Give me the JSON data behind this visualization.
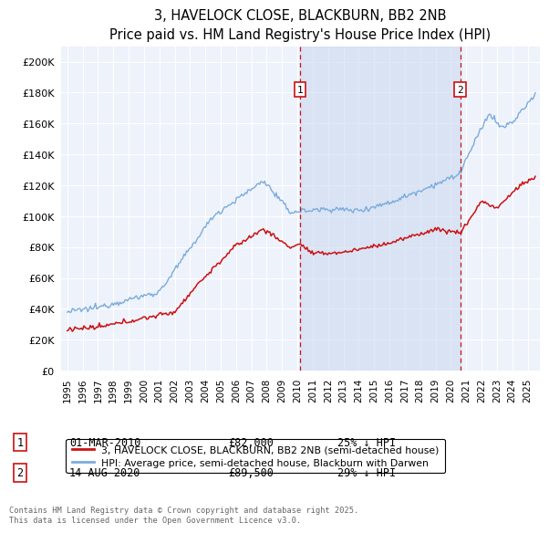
{
  "title": "3, HAVELOCK CLOSE, BLACKBURN, BB2 2NB",
  "subtitle": "Price paid vs. HM Land Registry's House Price Index (HPI)",
  "ylim": [
    0,
    210000
  ],
  "yticks": [
    0,
    20000,
    40000,
    60000,
    80000,
    100000,
    120000,
    140000,
    160000,
    180000,
    200000
  ],
  "ytick_labels": [
    "£0",
    "£20K",
    "£40K",
    "£60K",
    "£80K",
    "£100K",
    "£120K",
    "£140K",
    "£160K",
    "£180K",
    "£200K"
  ],
  "xlim_left": 1994.6,
  "xlim_right": 2025.8,
  "hpi_color": "#7aacdc",
  "price_color": "#cc1111",
  "marker1_x": 2010.17,
  "marker2_x": 2020.62,
  "marker1_text": "01-MAR-2010",
  "marker1_price": "£82,000",
  "marker1_hpi_txt": "25% ↓ HPI",
  "marker2_text": "14-AUG-2020",
  "marker2_price": "£89,500",
  "marker2_hpi_txt": "29% ↓ HPI",
  "legend_label1": "3, HAVELOCK CLOSE, BLACKBURN, BB2 2NB (semi-detached house)",
  "legend_label2": "HPI: Average price, semi-detached house, Blackburn with Darwen",
  "footer": "Contains HM Land Registry data © Crown copyright and database right 2025.\nThis data is licensed under the Open Government Licence v3.0.",
  "bg_color": "#eef2fb",
  "fig_bg": "#ffffff",
  "marker_box_color": "#cc1111",
  "vline_color": "#cc1111",
  "span_color": "#c8d8f0",
  "grid_color": "#ffffff",
  "title_fontsize": 10.5,
  "subtitle_fontsize": 9.5
}
